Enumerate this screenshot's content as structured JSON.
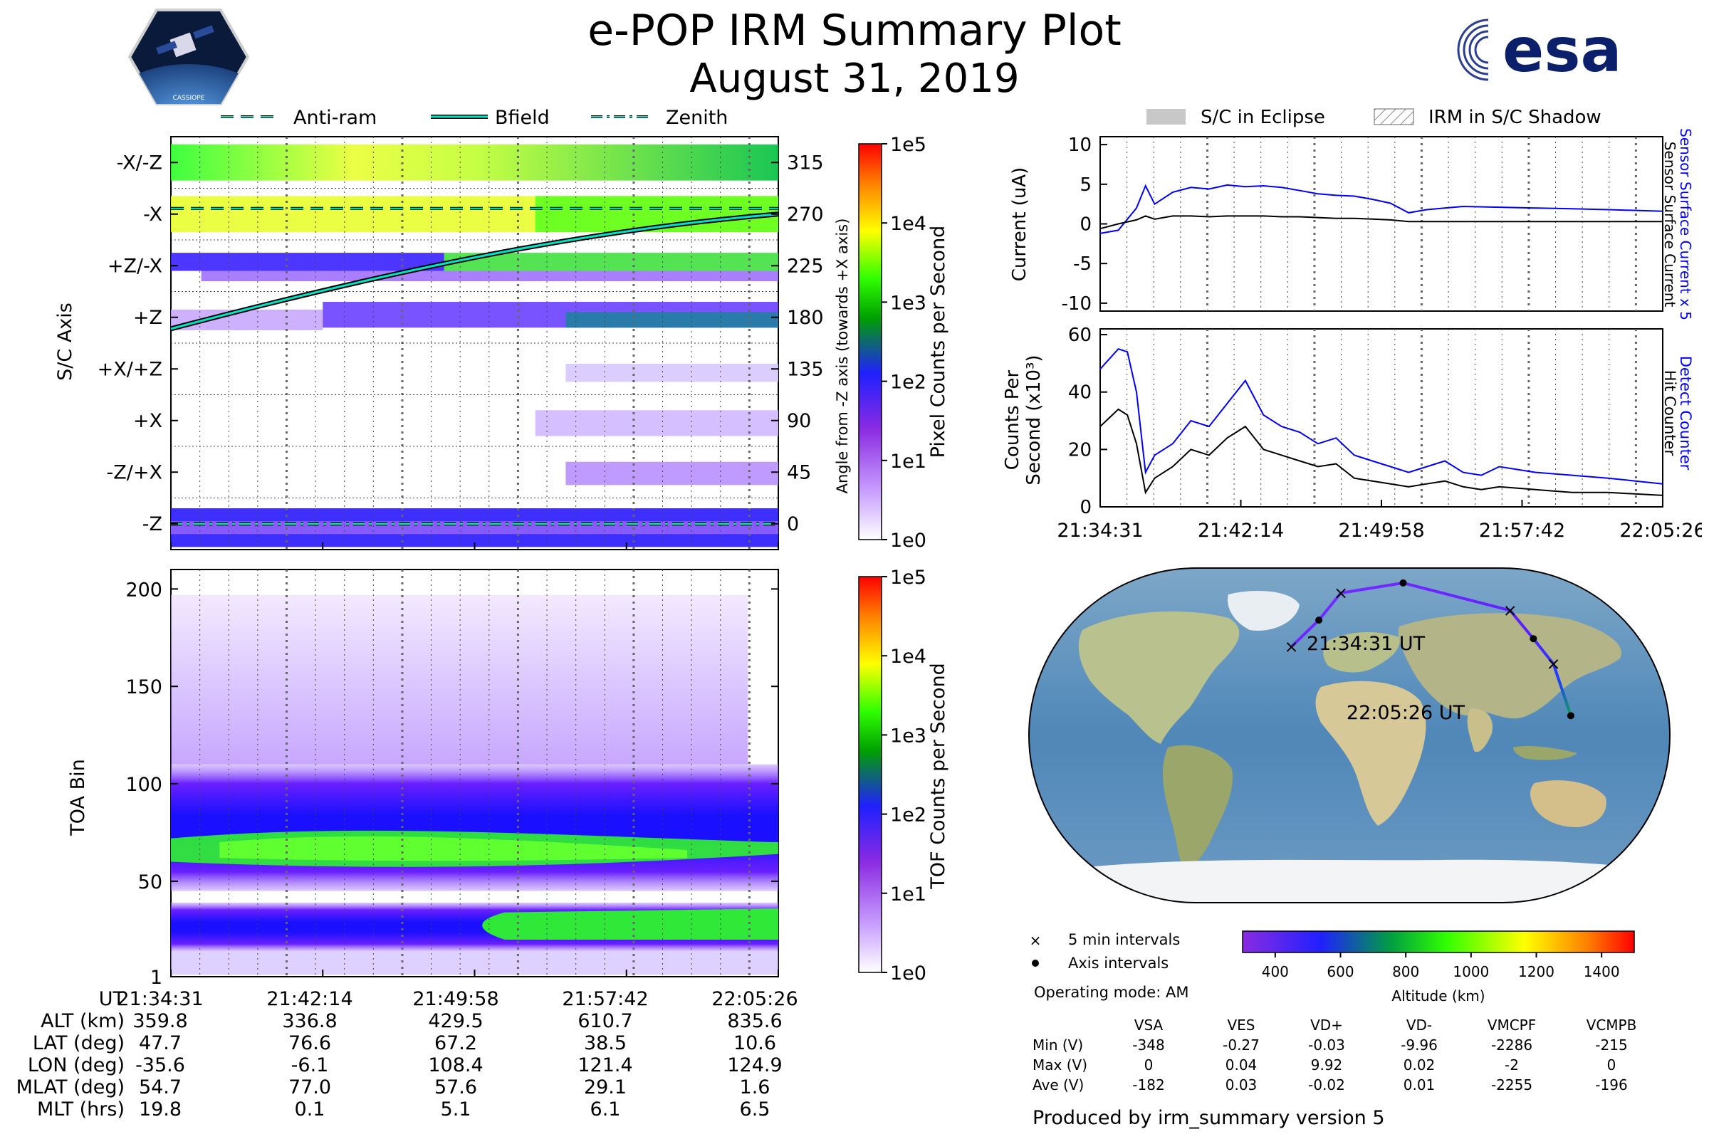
{
  "header": {
    "title": "e-POP IRM Summary Plot",
    "date": "August 31, 2019",
    "cassiope_logo_text": "CASSIOPE",
    "esa_logo_text": "esa"
  },
  "legend_top": {
    "items": [
      {
        "label": "Anti-ram",
        "style": "dashed"
      },
      {
        "label": "Bfield",
        "style": "solid"
      },
      {
        "label": "Zenith",
        "style": "dashdot"
      }
    ]
  },
  "legend_right": {
    "items": [
      {
        "label": "S/C in Eclipse"
      },
      {
        "label": "IRM in S/C Shadow"
      }
    ]
  },
  "colors": {
    "trace_blue": "#0000ff",
    "trace_black": "#000000",
    "line_cyan": "#00e5c8"
  },
  "chart_data": [
    {
      "id": "pixel-panel",
      "type": "heatmap",
      "ylabel": "S/C Axis",
      "y_tick_labels": [
        "-X/-Z",
        "-X",
        "+Z/-X",
        "+Z",
        "+X/+Z",
        "+X",
        "-Z/+X",
        "-Z"
      ],
      "right_axis_label": "Angle from -Z axis (towards +X axis)",
      "right_tick_labels": [
        "315",
        "270",
        "225",
        "180",
        "135",
        "90",
        "45",
        "0"
      ],
      "colorbar_label": "Pixel Counts per Second",
      "colorbar_ticks": [
        "1e0",
        "1e1",
        "1e2",
        "1e3",
        "1e4",
        "1e5"
      ],
      "x_tick_labels": [
        "21:34:31",
        "21:42:14",
        "21:49:58",
        "21:57:42",
        "22:05:26"
      ],
      "bfield_angle_deg": {
        "start": 170,
        "end": 270
      },
      "antiram_angle_deg": 275,
      "zenith_angle_deg": 0
    },
    {
      "id": "toa-panel",
      "type": "heatmap",
      "ylabel": "TOA Bin",
      "y_tick_labels": [
        "1",
        "50",
        "100",
        "150",
        "200"
      ],
      "ylim": [
        1,
        210
      ],
      "colorbar_label": "TOF Counts per Second",
      "colorbar_ticks": [
        "1e0",
        "1e1",
        "1e2",
        "1e3",
        "1e4",
        "1e5"
      ],
      "x_tick_labels": [
        "21:34:31",
        "21:42:14",
        "21:49:58",
        "21:57:42",
        "22:05:26"
      ]
    },
    {
      "id": "current-panel",
      "type": "line",
      "ylabel": "Current (uA)",
      "right_labels": [
        "Sensor Surface Current x 5",
        "Sensor Surface Current"
      ],
      "yticks": [
        "10",
        "5",
        "0",
        "-5",
        "-10"
      ],
      "ylim": [
        -11,
        11
      ],
      "x_minutes": [
        0,
        1,
        2,
        2.5,
        3,
        4,
        5,
        6,
        7,
        8,
        9,
        10,
        11,
        12,
        13,
        14,
        15,
        16,
        17,
        18,
        19,
        20,
        22,
        24,
        26,
        28,
        31
      ],
      "series": [
        {
          "name": "Sensor Surface Current x 5",
          "values": [
            -1.2,
            -0.8,
            2.0,
            4.8,
            2.5,
            4.0,
            4.6,
            4.4,
            4.9,
            4.7,
            4.8,
            4.6,
            4.2,
            3.8,
            3.6,
            3.5,
            3.1,
            2.6,
            1.4,
            1.8,
            2.0,
            2.2,
            2.1,
            2.0,
            1.9,
            1.8,
            1.6
          ]
        },
        {
          "name": "Sensor Surface Current",
          "values": [
            -0.6,
            0.0,
            0.5,
            1.0,
            0.6,
            1.0,
            1.0,
            0.9,
            1.0,
            1.0,
            1.0,
            0.9,
            0.9,
            0.8,
            0.7,
            0.7,
            0.6,
            0.5,
            0.3,
            0.3,
            0.3,
            0.3,
            0.3,
            0.3,
            0.3,
            0.3,
            0.3
          ]
        }
      ]
    },
    {
      "id": "counts-panel",
      "type": "line",
      "ylabel": "Counts Per Second (x10³)",
      "ylabel_line1": "Counts Per",
      "ylabel_line2": "Second (x10³)",
      "right_labels": [
        "Detect Counter",
        "Hit Counter"
      ],
      "yticks": [
        "60",
        "40",
        "20",
        "0"
      ],
      "ylim": [
        0,
        62
      ],
      "x_minutes": [
        0,
        1,
        1.5,
        2,
        2.5,
        3,
        4,
        5,
        6,
        7,
        8,
        9,
        10,
        11,
        12,
        13,
        14,
        15,
        16,
        17,
        18,
        19,
        20,
        21,
        22,
        24,
        26,
        28,
        31
      ],
      "series": [
        {
          "name": "Detect Counter",
          "values": [
            48,
            55,
            54,
            40,
            12,
            18,
            22,
            30,
            28,
            36,
            44,
            32,
            28,
            26,
            22,
            24,
            18,
            16,
            14,
            12,
            14,
            16,
            12,
            11,
            14,
            12,
            11,
            10,
            8
          ]
        },
        {
          "name": "Hit Counter",
          "values": [
            28,
            34,
            32,
            22,
            5,
            10,
            14,
            20,
            18,
            24,
            28,
            20,
            18,
            16,
            14,
            15,
            10,
            9,
            8,
            7,
            8,
            9,
            7,
            6,
            7,
            6,
            5,
            5,
            4
          ]
        }
      ],
      "x_tick_labels": [
        "21:34:31",
        "21:42:14",
        "21:49:58",
        "21:57:42",
        "22:05:26"
      ]
    },
    {
      "id": "orbit-map",
      "type": "map",
      "start_label": "21:34:31 UT",
      "end_label": "22:05:26 UT",
      "track_lonlat": [
        [
          -35.6,
          47.7
        ],
        [
          -20,
          62
        ],
        [
          -6.1,
          76.6
        ],
        [
          40,
          82
        ],
        [
          108.4,
          67.2
        ],
        [
          115,
          52
        ],
        [
          121.4,
          38.5
        ],
        [
          124.9,
          10.6
        ]
      ],
      "colorbar_label": "Altitude (km)",
      "colorbar_ticks": [
        "400",
        "600",
        "800",
        "1000",
        "1200",
        "1400"
      ],
      "colorbar_range": [
        300,
        1500
      ]
    }
  ],
  "map_legend": {
    "five_min": "5 min intervals",
    "axis": "Axis intervals",
    "operating_mode": "Operating mode: AM"
  },
  "ephemeris": {
    "rows": [
      {
        "label": "UT",
        "values": [
          "21:34:31",
          "21:42:14",
          "21:49:58",
          "21:57:42",
          "22:05:26"
        ]
      },
      {
        "label": "ALT (km)",
        "values": [
          "359.8",
          "336.8",
          "429.5",
          "610.7",
          "835.6"
        ]
      },
      {
        "label": "LAT (deg)",
        "values": [
          "47.7",
          "76.6",
          "67.2",
          "38.5",
          "10.6"
        ]
      },
      {
        "label": "LON (deg)",
        "values": [
          "-35.6",
          "-6.1",
          "108.4",
          "121.4",
          "124.9"
        ]
      },
      {
        "label": "MLAT (deg)",
        "values": [
          "54.7",
          "77.0",
          "57.6",
          "29.1",
          "1.6"
        ]
      },
      {
        "label": "MLT (hrs)",
        "values": [
          "19.8",
          "0.1",
          "5.1",
          "6.1",
          "6.5"
        ]
      }
    ]
  },
  "voltages": {
    "columns": [
      "VSA",
      "VES",
      "VD+",
      "VD-",
      "VMCPF",
      "VCMPB"
    ],
    "rows": [
      {
        "label": "Min (V)",
        "values": [
          "-348",
          "-0.27",
          "-0.03",
          "-9.96",
          "-2286",
          "-215"
        ]
      },
      {
        "label": "Max (V)",
        "values": [
          "0",
          "0.04",
          "9.92",
          "0.02",
          "-2",
          "0"
        ]
      },
      {
        "label": "Ave (V)",
        "values": [
          "-182",
          "0.03",
          "-0.02",
          "0.01",
          "-2255",
          "-196"
        ]
      }
    ]
  },
  "footer": "Produced by irm_summary version 5"
}
